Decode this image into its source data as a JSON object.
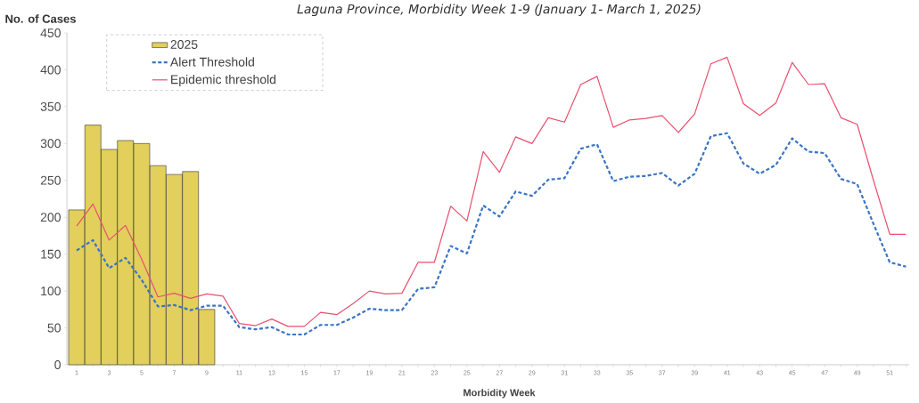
{
  "chart_data": {
    "type": "line",
    "title": "Laguna Province, Morbidity Week 1-9 (January 1- March 1, 2025)",
    "xlabel": "Morbidity Week",
    "ylabel": "No. of Cases",
    "categories": [
      "1",
      null,
      "3",
      null,
      "5",
      null,
      "7",
      null,
      "9",
      null,
      "11",
      null,
      "13",
      null,
      "15",
      null,
      "17",
      null,
      "19",
      null,
      "21",
      null,
      "23",
      null,
      "25",
      null,
      "27",
      null,
      "29",
      null,
      "31",
      null,
      "33",
      null,
      "35",
      null,
      "37",
      null,
      "39",
      null,
      "41",
      null,
      "43",
      null,
      "45",
      null,
      "47",
      null,
      "49",
      null,
      "51",
      null
    ],
    "series": [
      {
        "name": "2025",
        "type": "bar",
        "color": "#e2cf5c",
        "values": [
          210,
          325,
          292,
          304,
          300,
          270,
          258,
          262,
          75,
          null,
          null,
          null,
          null,
          null,
          null,
          null,
          null,
          null,
          null,
          null,
          null,
          null,
          null,
          null,
          null,
          null,
          null,
          null,
          null,
          null,
          null,
          null,
          null,
          null,
          null,
          null,
          null,
          null,
          null,
          null,
          null,
          null,
          null,
          null,
          null,
          null,
          null,
          null,
          null,
          null,
          null,
          null
        ]
      },
      {
        "name": "Alert Threshold",
        "line_style": "dashed",
        "color": "#3a74c4",
        "values": [
          155,
          169,
          131,
          145,
          115,
          79,
          81,
          74,
          80,
          80,
          51,
          48,
          51,
          41,
          41,
          54,
          54,
          64,
          76,
          74,
          74,
          103,
          105,
          161,
          151,
          216,
          201,
          235,
          229,
          251,
          253,
          293,
          299,
          249,
          255,
          256,
          260,
          243,
          259,
          310,
          314,
          273,
          259,
          271,
          307,
          289,
          287,
          252,
          245,
          191,
          139,
          133
        ]
      },
      {
        "name": "Epidemic threshold",
        "line_style": "solid",
        "color": "#e8506e",
        "values": [
          188,
          218,
          169,
          189,
          143,
          92,
          97,
          90,
          96,
          93,
          56,
          53,
          62,
          52,
          52,
          71,
          68,
          83,
          100,
          96,
          97,
          139,
          139,
          215,
          195,
          289,
          261,
          309,
          300,
          335,
          329,
          380,
          391,
          322,
          332,
          334,
          338,
          315,
          340,
          408,
          417,
          354,
          338,
          355,
          410,
          380,
          381,
          335,
          326,
          250,
          177,
          177
        ]
      }
    ],
    "marker": "none",
    "ylim": [
      0,
      450
    ],
    "yticks": [
      0,
      50,
      100,
      150,
      200,
      250,
      300,
      350,
      400,
      450
    ],
    "legend": "top left"
  }
}
